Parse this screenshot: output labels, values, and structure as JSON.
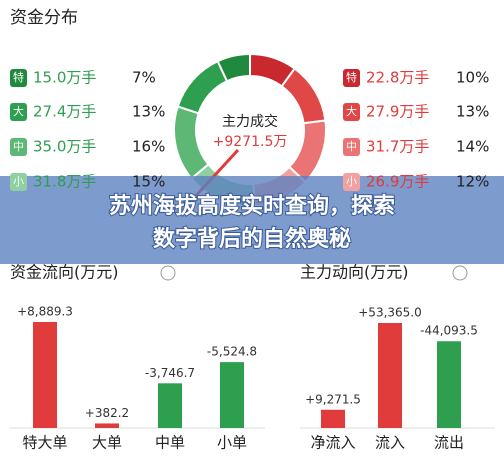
{
  "fund_distribution": {
    "title": "资金分布",
    "center_label": "主力成交",
    "center_value": "+9271.5万",
    "left": [
      {
        "tag": "特",
        "amount": "15.0万手",
        "percent": 7,
        "percent_label": "7%",
        "color": "#1f8a3d"
      },
      {
        "tag": "大",
        "amount": "27.4万手",
        "percent": 13,
        "percent_label": "13%",
        "color": "#2e9e4f"
      },
      {
        "tag": "中",
        "amount": "35.0万手",
        "percent": 16,
        "percent_label": "16%",
        "color": "#5cb874"
      },
      {
        "tag": "小",
        "amount": "31.8万手",
        "percent": 15,
        "percent_label": "15%",
        "color": "#8fd0a0"
      }
    ],
    "right": [
      {
        "tag": "特",
        "amount": "22.8万手",
        "percent": 10,
        "percent_label": "10%",
        "color": "#c8282e"
      },
      {
        "tag": "大",
        "amount": "27.9万手",
        "percent": 13,
        "percent_label": "13%",
        "color": "#e04848"
      },
      {
        "tag": "中",
        "amount": "31.7万手",
        "percent": 14,
        "percent_label": "14%",
        "color": "#ea7474"
      },
      {
        "tag": "小",
        "amount": "26.9万手",
        "percent": 12,
        "percent_label": "12%",
        "color": "#f2a0a0"
      }
    ]
  },
  "banner": {
    "lines": [
      "苏州海拔高度实时查询，探索",
      "数字背后的自然奥秘"
    ]
  },
  "fund_flow": {
    "title": "资金流向(万元)",
    "categories": [
      "特大单",
      "大单",
      "中单",
      "小单"
    ],
    "values": [
      8889.3,
      382.2,
      -3746.7,
      -5524.8
    ],
    "value_labels": [
      "+8,889.3",
      "+382.2",
      "-3,746.7",
      "-5,524.8"
    ],
    "positive_color": "#e03c3c",
    "negative_color": "#2e9e4f"
  },
  "main_force": {
    "title": "主力动向(万元)",
    "categories": [
      "净流入",
      "流入",
      "流出"
    ],
    "values": [
      9271.5,
      53365.0,
      -44093.5
    ],
    "value_labels": [
      "+9,271.5",
      "+53,365.0",
      "-44,093.5"
    ],
    "positive_color": "#e03c3c",
    "negative_color": "#2e9e4f"
  }
}
